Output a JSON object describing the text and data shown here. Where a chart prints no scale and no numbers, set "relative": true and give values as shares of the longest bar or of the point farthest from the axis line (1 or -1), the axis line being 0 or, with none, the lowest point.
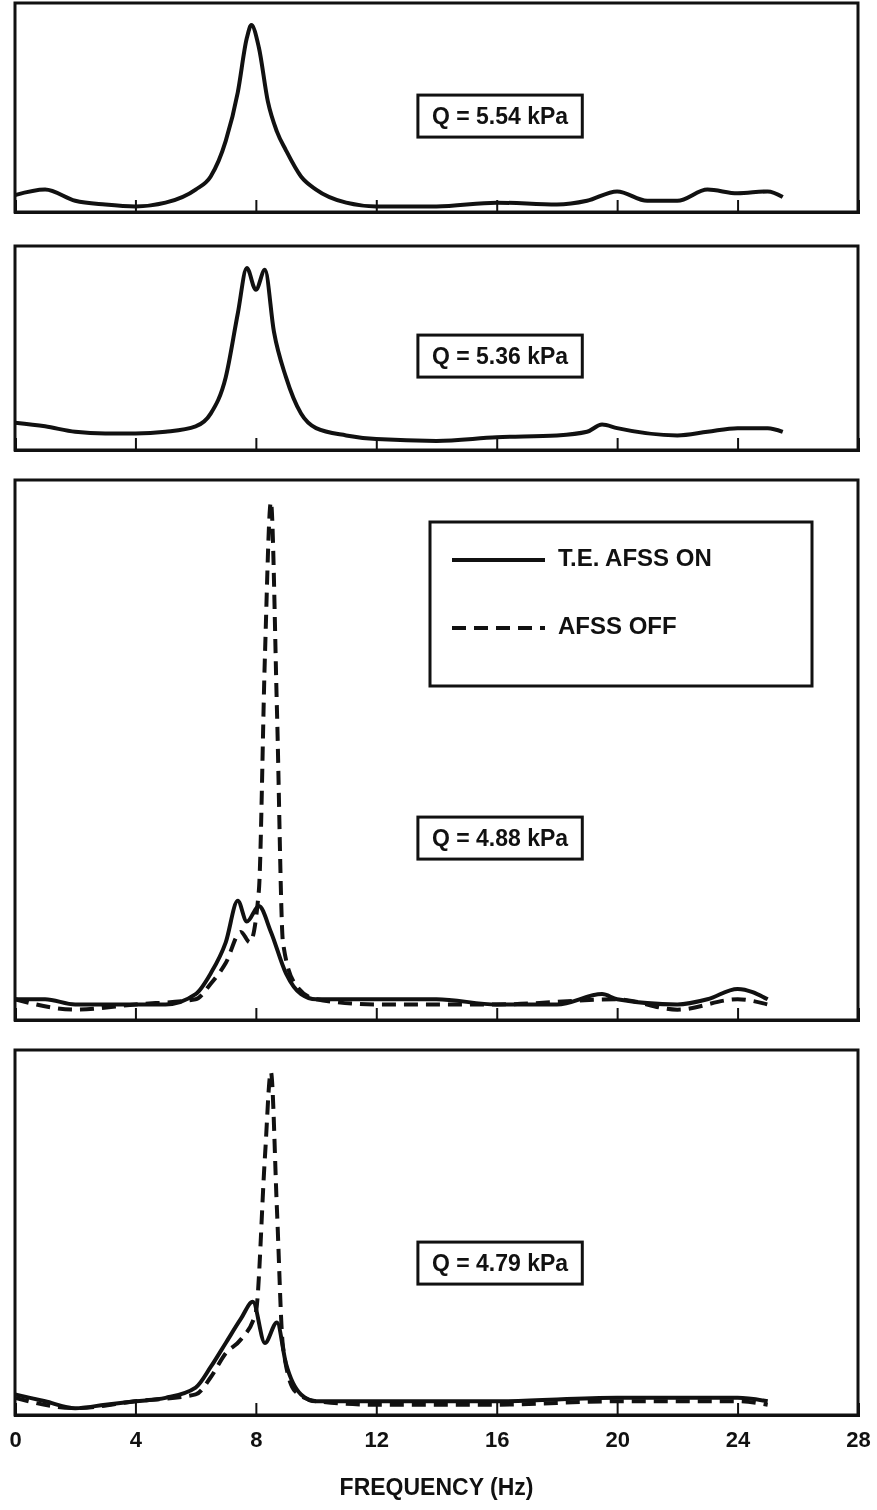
{
  "chart_data": [
    {
      "type": "line",
      "relative": true,
      "xlim": [
        0,
        28
      ],
      "xticks": [
        0,
        4,
        8,
        12,
        16,
        20,
        24,
        28
      ],
      "tick_labels": false,
      "grid": false,
      "legend": false,
      "annotations": [
        "Q = 5.54 kPa"
      ],
      "series": [
        {
          "color": "#111111",
          "line_style": "solid",
          "x": [
            0,
            1,
            2,
            3,
            4,
            5,
            6,
            6.5,
            7,
            7.4,
            7.7,
            7.85,
            8.1,
            8.4,
            8.7,
            9,
            9.5,
            10,
            11,
            12,
            14,
            16,
            18,
            19,
            20,
            21,
            22,
            23,
            24,
            25,
            25.5
          ],
          "values": [
            0.09,
            0.12,
            0.06,
            0.04,
            0.03,
            0.05,
            0.12,
            0.19,
            0.38,
            0.64,
            0.93,
            1,
            0.88,
            0.59,
            0.43,
            0.33,
            0.19,
            0.12,
            0.05,
            0.03,
            0.03,
            0.05,
            0.04,
            0.06,
            0.11,
            0.06,
            0.06,
            0.12,
            0.1,
            0.11,
            0.08
          ]
        }
      ]
    },
    {
      "type": "line",
      "relative": true,
      "xlim": [
        0,
        28
      ],
      "xticks": [
        0,
        4,
        8,
        12,
        16,
        20,
        24,
        28
      ],
      "tick_labels": false,
      "grid": false,
      "legend": false,
      "annotations": [
        "Q = 5.36 kPa"
      ],
      "series": [
        {
          "color": "#111111",
          "line_style": "solid",
          "x": [
            0,
            1,
            2,
            3,
            4,
            5,
            6,
            6.5,
            7,
            7.4,
            7.7,
            8,
            8.3,
            8.6,
            9,
            9.5,
            10,
            11,
            12,
            14,
            16,
            18,
            19,
            19.5,
            20,
            22,
            23,
            24,
            25,
            25.5
          ],
          "values": [
            0.15,
            0.13,
            0.1,
            0.09,
            0.09,
            0.1,
            0.13,
            0.2,
            0.4,
            0.75,
            1,
            0.88,
            0.99,
            0.65,
            0.4,
            0.2,
            0.12,
            0.08,
            0.06,
            0.05,
            0.07,
            0.08,
            0.1,
            0.14,
            0.12,
            0.08,
            0.1,
            0.12,
            0.12,
            0.1
          ]
        }
      ]
    },
    {
      "type": "line",
      "relative": true,
      "xlim": [
        0,
        28
      ],
      "xticks": [
        0,
        4,
        8,
        12,
        16,
        20,
        24,
        28
      ],
      "tick_labels": false,
      "grid": false,
      "legend": "top right",
      "annotations": [
        "Q = 4.88 kPa"
      ],
      "series": [
        {
          "name": "T.E. AFSS ON",
          "color": "#111111",
          "line_style": "solid",
          "x": [
            0,
            1,
            2,
            3,
            4,
            5,
            6,
            6.5,
            7,
            7.4,
            7.7,
            8.1,
            8.5,
            9,
            9.5,
            10,
            12,
            14,
            16,
            18,
            19.5,
            20,
            22,
            23,
            24,
            25
          ],
          "values": [
            0.04,
            0.04,
            0.03,
            0.03,
            0.03,
            0.03,
            0.05,
            0.09,
            0.15,
            0.23,
            0.19,
            0.22,
            0.17,
            0.09,
            0.05,
            0.04,
            0.04,
            0.04,
            0.03,
            0.03,
            0.05,
            0.04,
            0.03,
            0.04,
            0.06,
            0.04
          ]
        },
        {
          "name": "AFSS OFF",
          "color": "#111111",
          "line_style": "dashed",
          "x": [
            0,
            2,
            4,
            6,
            6.5,
            7,
            7.5,
            7.8,
            8.1,
            8.3,
            8.5,
            8.7,
            8.9,
            9.3,
            10,
            12,
            16,
            20,
            22,
            24,
            25
          ],
          "values": [
            0.04,
            0.02,
            0.03,
            0.04,
            0.07,
            0.11,
            0.17,
            0.15,
            0.25,
            0.7,
            1,
            0.6,
            0.15,
            0.07,
            0.04,
            0.03,
            0.03,
            0.04,
            0.02,
            0.04,
            0.03
          ]
        }
      ]
    },
    {
      "type": "line",
      "relative": true,
      "xlim": [
        0,
        28
      ],
      "xticks": [
        0,
        4,
        8,
        12,
        16,
        20,
        24,
        28
      ],
      "tick_labels": "x",
      "grid": false,
      "legend": false,
      "xlabel": "FREQUENCY (Hz)",
      "annotations": [
        "Q = 4.79 kPa"
      ],
      "series": [
        {
          "color": "#111111",
          "line_style": "solid",
          "x": [
            0,
            1,
            2,
            3,
            4,
            5,
            6,
            6.5,
            7,
            7.5,
            7.9,
            8.3,
            8.7,
            9,
            9.5,
            10,
            12,
            16,
            20,
            24,
            25
          ],
          "values": [
            0.06,
            0.04,
            0.02,
            0.03,
            0.04,
            0.05,
            0.08,
            0.14,
            0.21,
            0.28,
            0.33,
            0.21,
            0.27,
            0.15,
            0.06,
            0.04,
            0.04,
            0.04,
            0.05,
            0.05,
            0.04
          ]
        },
        {
          "color": "#111111",
          "line_style": "dashed",
          "x": [
            0,
            2,
            4,
            6,
            6.5,
            7,
            7.5,
            8,
            8.3,
            8.5,
            8.7,
            8.9,
            9.3,
            10,
            12,
            16,
            20,
            24,
            25
          ],
          "values": [
            0.05,
            0.02,
            0.04,
            0.06,
            0.11,
            0.18,
            0.22,
            0.3,
            0.75,
            1,
            0.6,
            0.2,
            0.07,
            0.04,
            0.03,
            0.03,
            0.04,
            0.04,
            0.03
          ]
        }
      ]
    }
  ]
}
